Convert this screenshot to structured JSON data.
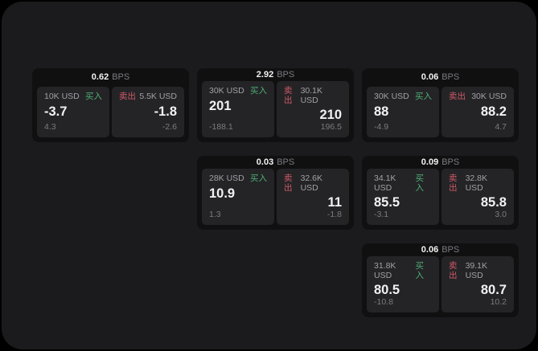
{
  "labels": {
    "bps_unit": "BPS",
    "buy": "买入",
    "sell": "卖出"
  },
  "colors": {
    "backdrop": "#000000",
    "window_bg": "#1b1b1d",
    "card_bg": "#101011",
    "panel_bg": "#242427",
    "text_primary": "#f2f2f2",
    "text_secondary": "#a0a0a6",
    "text_dim": "#7b7b81",
    "buy_green": "#4fae74",
    "sell_red": "#cf5966"
  },
  "cards": [
    {
      "bps": "0.62",
      "row": 1,
      "col": 1,
      "buy": {
        "amount": "10K USD",
        "price": "-3.7",
        "delta": "4.3"
      },
      "sell": {
        "amount": "5.5K USD",
        "price": "-1.8",
        "delta": "-2.6"
      }
    },
    {
      "bps": "2.92",
      "row": 1,
      "col": 2,
      "buy": {
        "amount": "30K USD",
        "price": "201",
        "delta": "-188.1"
      },
      "sell": {
        "amount": "30.1K USD",
        "price": "210",
        "delta": "196.5"
      }
    },
    {
      "bps": "0.06",
      "row": 1,
      "col": 3,
      "buy": {
        "amount": "30K USD",
        "price": "88",
        "delta": "-4.9"
      },
      "sell": {
        "amount": "30K USD",
        "price": "88.2",
        "delta": "4.7"
      }
    },
    {
      "bps": "0.03",
      "row": 2,
      "col": 2,
      "buy": {
        "amount": "28K USD",
        "price": "10.9",
        "delta": "1.3"
      },
      "sell": {
        "amount": "32.6K USD",
        "price": "11",
        "delta": "-1.8"
      }
    },
    {
      "bps": "0.09",
      "row": 2,
      "col": 3,
      "buy": {
        "amount": "34.1K USD",
        "price": "85.5",
        "delta": "-3.1"
      },
      "sell": {
        "amount": "32.8K USD",
        "price": "85.8",
        "delta": "3.0"
      }
    },
    {
      "bps": "0.06",
      "row": 3,
      "col": 3,
      "buy": {
        "amount": "31.8K USD",
        "price": "80.5",
        "delta": "-10.8"
      },
      "sell": {
        "amount": "39.1K USD",
        "price": "80.7",
        "delta": "10.2"
      }
    }
  ]
}
